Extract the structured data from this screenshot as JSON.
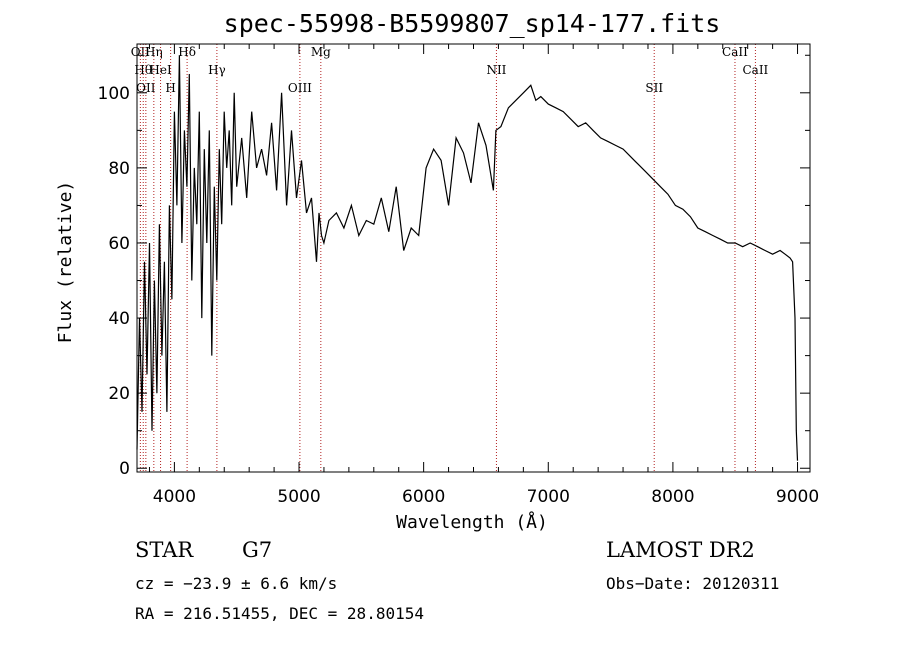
{
  "chart_data": {
    "type": "line",
    "title": "spec-55998-B5599807_sp14-177.fits",
    "xlabel": "Wavelength (Å)",
    "ylabel": "Flux (relative)",
    "xlim": [
      3700,
      9100
    ],
    "ylim": [
      -1,
      113
    ],
    "xticks": [
      4000,
      5000,
      6000,
      7000,
      8000,
      9000
    ],
    "yticks": [
      0,
      20,
      40,
      60,
      80,
      100
    ],
    "grid": false,
    "series": [
      {
        "x": [
          3700,
          3720,
          3740,
          3760,
          3780,
          3800,
          3820,
          3840,
          3860,
          3880,
          3900,
          3920,
          3940,
          3960,
          3980,
          4000,
          4020,
          4040,
          4060,
          4080,
          4100,
          4120,
          4140,
          4160,
          4180,
          4200,
          4220,
          4240,
          4260,
          4280,
          4300,
          4320,
          4340,
          4360,
          4380,
          4400,
          4420,
          4440,
          4460,
          4480,
          4500,
          4540,
          4580,
          4620,
          4660,
          4700,
          4740,
          4780,
          4820,
          4860,
          4900,
          4940,
          4980,
          5020,
          5060,
          5100,
          5140,
          5160,
          5180,
          5200,
          5240,
          5300,
          5360,
          5420,
          5480,
          5540,
          5600,
          5660,
          5720,
          5780,
          5840,
          5900,
          5960,
          6020,
          6080,
          6140,
          6200,
          6260,
          6320,
          6380,
          6440,
          6500,
          6560,
          6580,
          6620,
          6680,
          6740,
          6800,
          6860,
          6900,
          6940,
          7000,
          7060,
          7120,
          7180,
          7240,
          7300,
          7360,
          7420,
          7480,
          7540,
          7600,
          7660,
          7720,
          7780,
          7840,
          7900,
          7960,
          8020,
          8080,
          8140,
          8200,
          8260,
          8320,
          8380,
          8440,
          8500,
          8560,
          8620,
          8680,
          8740,
          8800,
          8860,
          8900,
          8940,
          8960,
          8980,
          8990,
          9000
        ],
        "values": [
          5,
          40,
          15,
          55,
          25,
          60,
          10,
          50,
          20,
          65,
          30,
          55,
          15,
          70,
          45,
          95,
          70,
          110,
          60,
          90,
          75,
          105,
          50,
          80,
          65,
          95,
          40,
          85,
          60,
          90,
          30,
          75,
          50,
          85,
          65,
          95,
          80,
          90,
          70,
          100,
          75,
          88,
          72,
          95,
          80,
          85,
          78,
          92,
          74,
          100,
          70,
          90,
          72,
          82,
          68,
          72,
          55,
          68,
          62,
          60,
          66,
          68,
          64,
          70,
          62,
          66,
          65,
          72,
          63,
          75,
          58,
          64,
          62,
          80,
          85,
          82,
          70,
          88,
          84,
          76,
          92,
          86,
          74,
          90,
          91,
          96,
          98,
          100,
          102,
          98,
          99,
          97,
          96,
          95,
          93,
          91,
          92,
          90,
          88,
          87,
          86,
          85,
          83,
          81,
          79,
          77,
          75,
          73,
          70,
          69,
          67,
          64,
          63,
          62,
          61,
          60,
          60,
          59,
          60,
          59,
          58,
          57,
          58,
          57,
          56,
          55,
          40,
          10,
          2
        ]
      }
    ],
    "lines": [
      {
        "x": 3727,
        "label": "OII"
      },
      {
        "x": 3750,
        "label": "Hθ"
      },
      {
        "x": 3771,
        "label": "OII"
      },
      {
        "x": 3835,
        "label": "Hη"
      },
      {
        "x": 3889,
        "label": "HeI"
      },
      {
        "x": 3970,
        "label": "H"
      },
      {
        "x": 4102,
        "label": "Hδ"
      },
      {
        "x": 4341,
        "label": "Hγ"
      },
      {
        "x": 5007,
        "label": "OIII"
      },
      {
        "x": 5175,
        "label": "Mg"
      },
      {
        "x": 6584,
        "label": "NII"
      },
      {
        "x": 7850,
        "label": "SII"
      },
      {
        "x": 8498,
        "label": "CaII"
      },
      {
        "x": 8662,
        "label": "CaII"
      }
    ]
  },
  "info": {
    "class": "STAR",
    "subclass": "G7",
    "survey": "LAMOST DR2",
    "cz": "cz = −23.9 ± 6.6 km/s",
    "obs_date": "Obs−Date: 20120311",
    "radec": "RA = 216.51455, DEC =  28.80154"
  }
}
